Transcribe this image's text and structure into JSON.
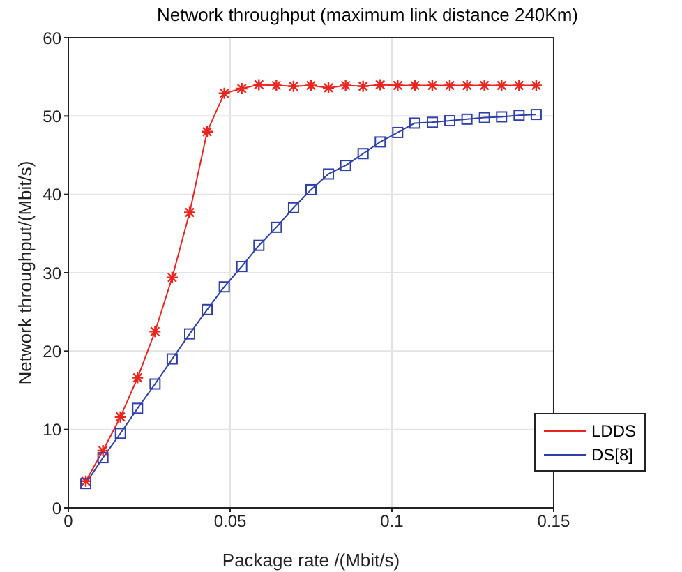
{
  "chart_data": {
    "type": "line",
    "title": "Network throughput (maximum link distance 240Km)",
    "xlabel": "Package rate /(Mbit/s)",
    "ylabel": "Network throughput/(Mbit/s)",
    "x": [
      0.0054,
      0.0107,
      0.0161,
      0.0214,
      0.0268,
      0.0321,
      0.0375,
      0.0429,
      0.0482,
      0.0536,
      0.0589,
      0.0643,
      0.0696,
      0.075,
      0.0804,
      0.0857,
      0.0911,
      0.0964,
      0.1018,
      0.1071,
      0.1125,
      0.1179,
      0.1232,
      0.1286,
      0.1339,
      0.1393,
      0.1446
    ],
    "series": [
      {
        "name": "LDDS",
        "color": "#e8251f",
        "marker": "cross",
        "values": [
          3.4,
          7.3,
          11.6,
          16.6,
          22.5,
          29.4,
          37.7,
          48.0,
          52.9,
          53.5,
          54.0,
          53.9,
          53.8,
          53.9,
          53.6,
          53.9,
          53.8,
          54.0,
          53.9,
          53.9,
          53.9,
          53.9,
          53.9,
          53.9,
          53.9,
          53.9,
          53.9
        ]
      },
      {
        "name": "DS[8]",
        "color": "#2e40a8",
        "marker": "square",
        "values": [
          3.1,
          6.4,
          9.5,
          12.7,
          15.8,
          19.0,
          22.2,
          25.3,
          28.2,
          30.8,
          33.5,
          35.8,
          38.3,
          40.6,
          42.6,
          43.7,
          45.2,
          46.7,
          47.9,
          49.1,
          49.2,
          49.4,
          49.6,
          49.8,
          49.9,
          50.1,
          50.2
        ]
      }
    ],
    "xlim": [
      0,
      0.15
    ],
    "xticks": [
      0,
      0.05,
      0.1,
      0.15
    ],
    "ylim": [
      0,
      60
    ],
    "yticks": [
      0,
      10,
      20,
      30,
      40,
      50,
      60
    ],
    "grid": true,
    "legend": "bottom right",
    "line_style": "solid"
  }
}
